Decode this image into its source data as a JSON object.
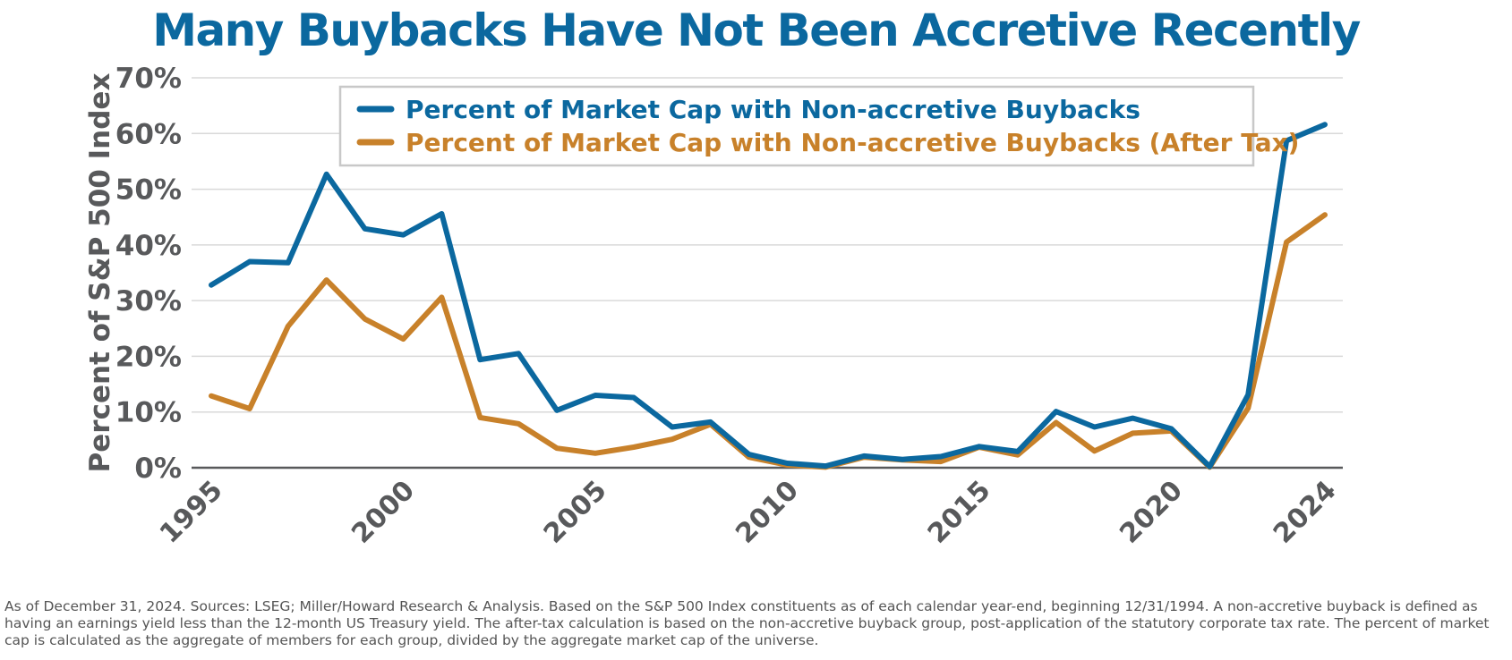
{
  "chart_data": {
    "type": "line",
    "title": "Many Buybacks Have Not Been Accretive Recently",
    "ylabel": "Percent of S&P 500 Index",
    "xlabel": "",
    "ylim": [
      0,
      70
    ],
    "y_ticks": [
      0,
      10,
      20,
      30,
      40,
      50,
      60,
      70
    ],
    "y_tick_labels": [
      "0%",
      "10%",
      "20%",
      "30%",
      "40%",
      "50%",
      "60%",
      "70%"
    ],
    "x_range": [
      1995,
      2024
    ],
    "x_ticks": [
      1995,
      2000,
      2005,
      2010,
      2015,
      2020,
      2024
    ],
    "x_tick_labels": [
      "1995",
      "2000",
      "2005",
      "2010",
      "2015",
      "2020",
      "2024"
    ],
    "grid": true,
    "legend_position": "top-center",
    "x": [
      1995,
      1996,
      1997,
      1998,
      1999,
      2000,
      2001,
      2002,
      2003,
      2004,
      2005,
      2006,
      2007,
      2008,
      2009,
      2010,
      2011,
      2012,
      2013,
      2014,
      2015,
      2016,
      2017,
      2018,
      2019,
      2020,
      2021,
      2022,
      2023,
      2024
    ],
    "series": [
      {
        "name": "Percent of Market Cap with Non-accretive Buybacks",
        "color": "#0b689f",
        "values": [
          32.8,
          37.0,
          36.8,
          52.7,
          42.9,
          41.8,
          45.6,
          19.4,
          20.5,
          10.3,
          13.0,
          12.6,
          7.3,
          8.2,
          2.4,
          0.8,
          0.3,
          2.1,
          1.5,
          2.0,
          3.8,
          2.9,
          10.1,
          7.3,
          8.9,
          7.0,
          0.2,
          13.1,
          58.7,
          61.6
        ]
      },
      {
        "name": "Percent of Market Cap with Non-accretive Buybacks (After Tax)",
        "color": "#c8812a",
        "values": [
          12.9,
          10.6,
          25.4,
          33.7,
          26.7,
          23.1,
          30.6,
          9.0,
          7.9,
          3.5,
          2.6,
          3.7,
          5.1,
          7.8,
          1.9,
          0.5,
          0.1,
          1.9,
          1.4,
          1.1,
          3.7,
          2.3,
          8.1,
          3.0,
          6.2,
          6.6,
          0.1,
          10.7,
          40.5,
          45.4
        ]
      }
    ]
  },
  "footnote": "As of December 31, 2024. Sources: LSEG; Miller/Howard Research & Analysis. Based on the S&P 500 Index constituents as of each calendar year-end, beginning 12/31/1994. A non-accretive buyback is defined as having an earnings yield less than the 12-month US Treasury yield. The after-tax calculation is based on the non-accretive buyback group, post-application of the statutory corporate tax rate. The percent of market cap is calculated as the aggregate of members for each group, divided by the aggregate market cap of the universe."
}
